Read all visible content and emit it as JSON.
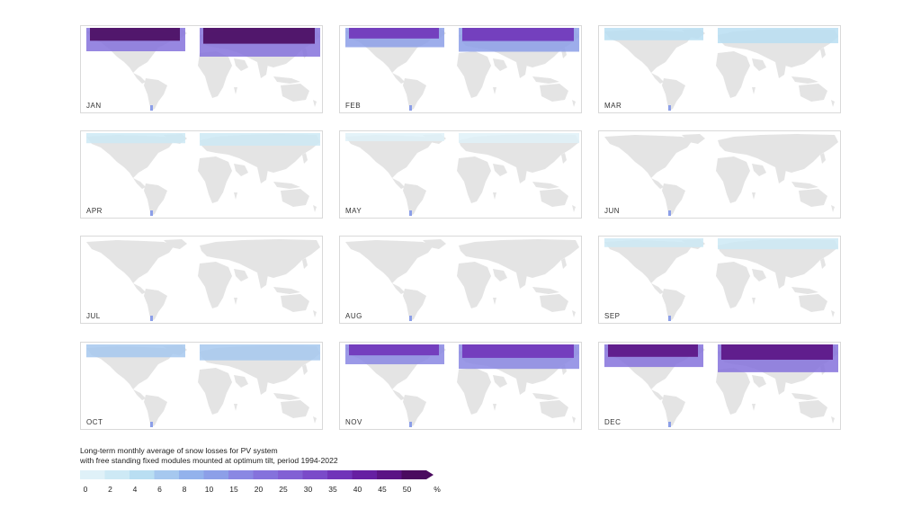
{
  "months": [
    "JAN",
    "FEB",
    "MAR",
    "APR",
    "MAY",
    "JUN",
    "JUL",
    "AUG",
    "SEP",
    "OCT",
    "NOV",
    "DEC"
  ],
  "intensity": [
    1.0,
    0.75,
    0.32,
    0.18,
    0.05,
    0.02,
    0.02,
    0.02,
    0.1,
    0.35,
    0.78,
    0.95
  ],
  "legend": {
    "title_line1": "Long-term monthly average of snow losses for PV system",
    "title_line2": "with free standing fixed modules mounted at optimum tilt, period 1994-2022",
    "ticks": [
      "0",
      "2",
      "4",
      "6",
      "8",
      "10",
      "15",
      "20",
      "25",
      "30",
      "35",
      "40",
      "45",
      "50"
    ],
    "unit": "%",
    "colors": [
      "#dff1f8",
      "#cde9f5",
      "#b9def2",
      "#a6c8ef",
      "#93b2ec",
      "#8c9fe8",
      "#8a87e3",
      "#8572dc",
      "#8260d4",
      "#7a4ac9",
      "#7034b9",
      "#661fa2",
      "#5b1384",
      "#4a0b5f"
    ]
  },
  "land_color": "#e4e4e4"
}
